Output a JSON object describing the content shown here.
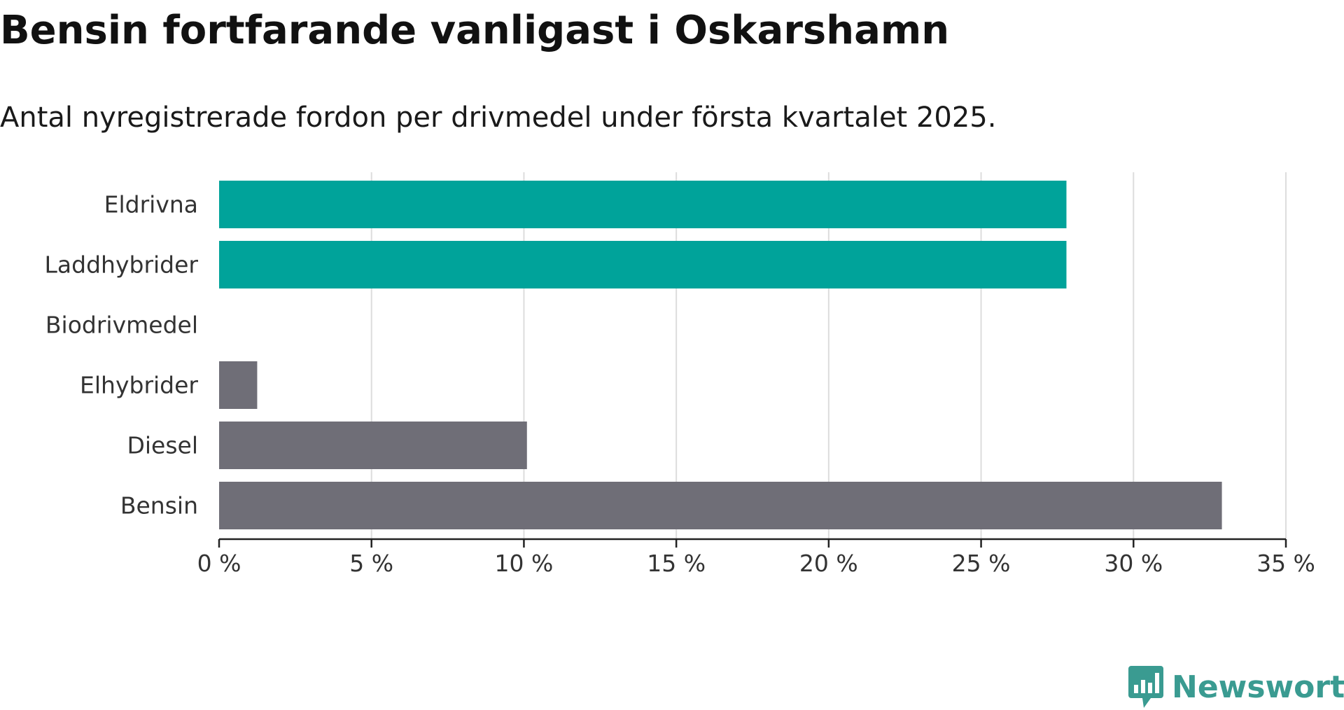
{
  "header": {
    "title": "Bensin fortfarande vanligast i Oskarshamn",
    "subtitle": "Antal nyregistrerade fordon per drivmedel under första kvartalet 2025."
  },
  "brand": {
    "name": "Newsworthy",
    "icon": "newsworthy-logo-icon",
    "color": "#3a9b91"
  },
  "colors": {
    "highlight": "#00a39a",
    "default": "#6f6e77",
    "grid": "#dddddd",
    "axis": "#222222"
  },
  "chart_data": {
    "type": "bar",
    "orientation": "horizontal",
    "categories": [
      "Eldrivna",
      "Laddhybrider",
      "Biodrivmedel",
      "Elhybrider",
      "Diesel",
      "Bensin"
    ],
    "values": [
      27.8,
      27.8,
      0,
      1.25,
      10.1,
      32.9
    ],
    "highlighted": [
      true,
      true,
      false,
      false,
      false,
      false
    ],
    "xlim": [
      0,
      35
    ],
    "xticks": [
      0,
      5,
      10,
      15,
      20,
      25,
      30,
      35
    ],
    "xtick_labels": [
      "0 %",
      "5 %",
      "10 %",
      "15 %",
      "20 %",
      "25 %",
      "30 %",
      "35 %"
    ],
    "grid": true,
    "legend": "none"
  }
}
